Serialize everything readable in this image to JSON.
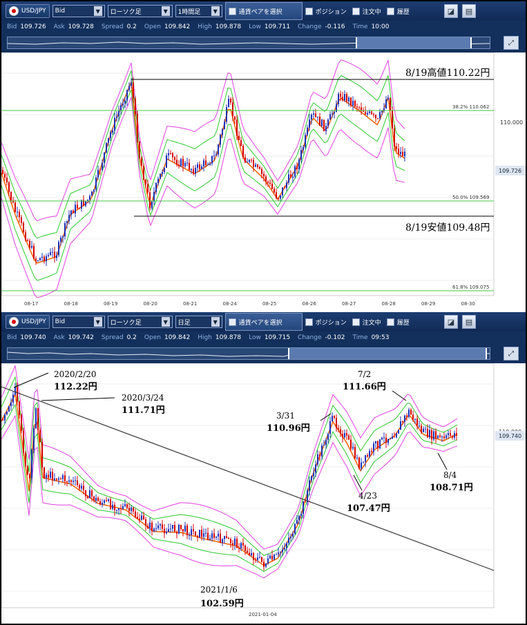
{
  "panels": [
    {
      "toolbar": {
        "symbol": "USD/JPY",
        "price_type": "Bid",
        "chart_type": "ローソク足",
        "timeframe": "1時間足",
        "pair_select": "通貨ペアを選択",
        "position": "ポジション",
        "orders": "注文中",
        "history": "履歴"
      },
      "quote": {
        "bid_k": "Bid",
        "bid": "109.726",
        "ask_k": "Ask",
        "ask": "109.728",
        "spread_k": "Spread",
        "spread": "0.2",
        "open_k": "Open",
        "open": "109.842",
        "high_k": "High",
        "high": "109.878",
        "low_k": "Low",
        "low": "109.711",
        "change_k": "Change",
        "change": "-0.116",
        "time_k": "Time",
        "time": "10:00"
      },
      "chart": {
        "y_tick": "110.000",
        "price_badge": "109.726",
        "fib_382": "38.2%  110.062",
        "fib_500": "50.0%  109.569",
        "fib_618": "61.8%  109.075",
        "x_ticks": [
          "08-17",
          "08-18",
          "08-19",
          "08-20",
          "08-21",
          "08-24",
          "08-25",
          "08-26",
          "08-27",
          "08-28",
          "08-29",
          "08-30"
        ],
        "annotations": {
          "high": "8/19高値110.22円",
          "low": "8/19安値109.48円"
        }
      }
    },
    {
      "toolbar": {
        "symbol": "USD/JPY",
        "price_type": "Bid",
        "chart_type": "ローソク足",
        "timeframe": "日足",
        "pair_select": "通貨ペアを選択",
        "position": "ポジション",
        "orders": "注文中",
        "history": "履歴"
      },
      "quote": {
        "bid_k": "Bid",
        "bid": "109.740",
        "ask_k": "Ask",
        "ask": "109.742",
        "spread_k": "Spread",
        "spread": "0.2",
        "open_k": "Open",
        "open": "109.842",
        "high_k": "High",
        "high": "109.878",
        "low_k": "Low",
        "low": "109.715",
        "change_k": "Change",
        "change": "-0.102",
        "time_k": "Time",
        "time": "09:53"
      },
      "chart": {
        "y_tick": "110.000",
        "price_badge": "109.740",
        "x_tick": "2021-01-04",
        "annotations": [
          {
            "date": "2020/2/20",
            "price": "112.22円"
          },
          {
            "date": "2020/3/24",
            "price": "111.71円"
          },
          {
            "date": "3/31",
            "price": "110.96円"
          },
          {
            "date": "7/2",
            "price": "111.66円"
          },
          {
            "date": "4/23",
            "price": "107.47円"
          },
          {
            "date": "8/4",
            "price": "108.71円"
          },
          {
            "date": "2021/1/6",
            "price": "102.59円"
          }
        ]
      }
    }
  ],
  "colors": {
    "toolbar_bg": "#1d3d72",
    "bull_candle": "#1b2fb8",
    "bear_candle": "#d40000",
    "bollinger_outer": "#e040e0",
    "bollinger_inner": "#2ec82e",
    "moving_average": "#f06a10",
    "fib_line": "#41c741"
  },
  "icons": [
    "us-flag-icon",
    "chart-settings-icon",
    "window-icon",
    "expand-icon"
  ]
}
